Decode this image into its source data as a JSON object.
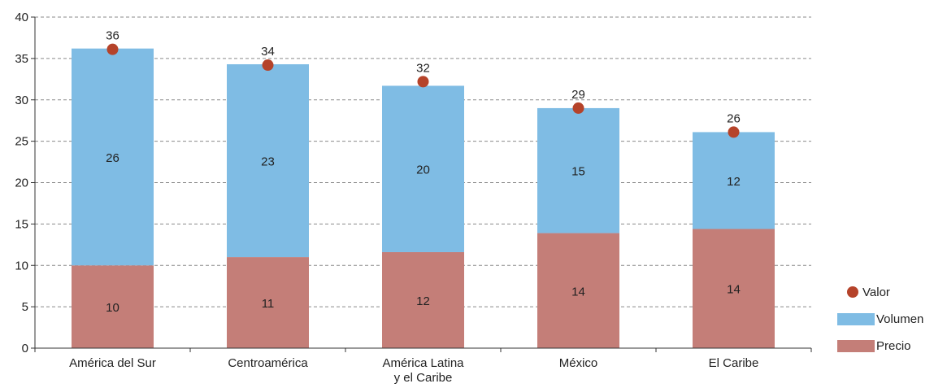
{
  "chart_data": {
    "type": "bar",
    "stacked": true,
    "title": "",
    "xlabel": "",
    "ylabel": "",
    "ylim": [
      0,
      40
    ],
    "yticks": [
      0,
      5,
      10,
      15,
      20,
      25,
      30,
      35,
      40
    ],
    "grid": true,
    "legend_position": "right-bottom",
    "categories": [
      [
        "América del Sur"
      ],
      [
        "Centroamérica"
      ],
      [
        "América Latina",
        "y el Caribe"
      ],
      [
        "México"
      ],
      [
        "El Caribe"
      ]
    ],
    "series": [
      {
        "name": "Precio",
        "kind": "bar",
        "color": "#C47E78",
        "values": [
          10,
          11,
          12,
          14,
          14
        ],
        "display_values": [
          10,
          11,
          11.6,
          13.9,
          14.4
        ]
      },
      {
        "name": "Volumen",
        "kind": "bar",
        "color": "#7FBCE4",
        "values": [
          26,
          23,
          20,
          15,
          12
        ],
        "display_values": [
          26.2,
          23.3,
          20.1,
          15.1,
          11.7
        ]
      },
      {
        "name": "Valor",
        "kind": "point",
        "color": "#B5432A",
        "values": [
          36,
          34,
          32,
          29,
          26
        ],
        "display_values": [
          36.1,
          34.2,
          32.2,
          29,
          26.1
        ]
      }
    ],
    "legend_order": [
      "Valor",
      "Volumen",
      "Precio"
    ]
  }
}
